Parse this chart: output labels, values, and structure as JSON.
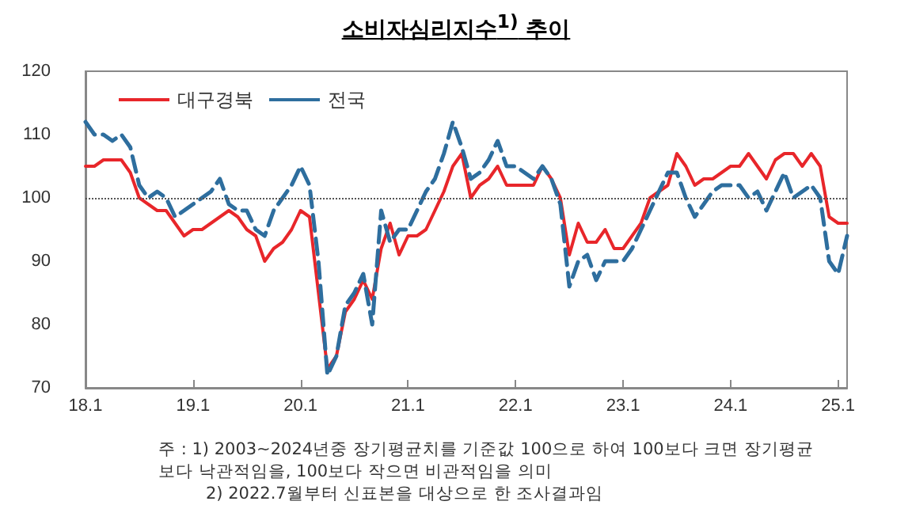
{
  "chart_data": {
    "type": "line",
    "title": "소비자심리지수$^{1)}$ 추이",
    "categories": [
      "18.1",
      null,
      null,
      null,
      null,
      null,
      null,
      null,
      null,
      null,
      null,
      null,
      "19.1",
      null,
      null,
      null,
      null,
      null,
      null,
      null,
      null,
      null,
      null,
      null,
      "20.1",
      null,
      null,
      null,
      null,
      null,
      null,
      null,
      null,
      null,
      null,
      null,
      "21.1",
      null,
      null,
      null,
      null,
      null,
      null,
      null,
      null,
      null,
      null,
      null,
      "22.1",
      null,
      null,
      null,
      null,
      null,
      null,
      null,
      null,
      null,
      null,
      null,
      "23.1",
      null,
      null,
      null,
      null,
      null,
      null,
      null,
      null,
      null,
      null,
      null,
      "24.1",
      null,
      null,
      null,
      null,
      null,
      null,
      null,
      null,
      null,
      null,
      null,
      "25.1",
      null
    ],
    "series": [
      {
        "name": "대구경북",
        "color": "#e8262a",
        "line_style": "solid",
        "values": [
          105,
          105,
          106,
          106,
          106,
          104,
          100,
          99,
          98,
          98,
          96,
          94,
          95,
          95,
          96,
          97,
          98,
          97,
          95,
          94,
          90,
          92,
          93,
          95,
          98,
          97,
          85,
          73,
          75,
          82,
          84,
          87,
          84,
          92,
          96,
          91,
          94,
          94,
          95,
          98,
          101,
          105,
          107,
          100,
          102,
          103,
          105,
          102,
          102,
          102,
          102,
          105,
          103,
          100,
          91,
          96,
          93,
          93,
          95,
          92,
          92,
          94,
          96,
          100,
          101,
          102,
          107,
          105,
          102,
          103,
          103,
          104,
          105,
          105,
          107,
          105,
          103,
          106,
          107,
          107,
          105,
          107,
          105,
          97,
          96,
          96
        ]
      },
      {
        "name": "전국",
        "color": "#2e6e9e",
        "line_style": "dashed",
        "values": [
          112,
          110,
          110,
          109,
          110,
          108,
          102,
          100,
          101,
          100,
          97,
          98,
          99,
          100,
          101,
          103,
          99,
          98,
          98,
          95,
          94,
          98,
          100,
          102,
          105,
          102,
          90,
          72,
          75,
          83,
          85,
          88,
          80,
          98,
          93,
          95,
          95,
          98,
          101,
          103,
          107,
          112,
          108,
          103,
          104,
          106,
          109,
          105,
          105,
          104,
          103,
          105,
          103,
          99,
          86,
          90,
          91,
          87,
          90,
          90,
          90,
          92,
          95,
          98,
          101,
          104,
          104,
          100,
          97,
          99,
          101,
          102,
          102,
          102,
          100,
          101,
          98,
          101,
          104,
          100,
          101,
          102,
          100,
          90,
          88,
          94
        ]
      }
    ],
    "ylim": [
      70,
      120
    ],
    "yticks": [
      70,
      80,
      90,
      100,
      110,
      120
    ],
    "grid": false,
    "legend": "top left",
    "marker": "none",
    "ref_lines": [
      {
        "axis": "y",
        "value": 100,
        "color": "#555555",
        "line_style": "dotted"
      }
    ],
    "annotations": [
      "주 : 1) 2003~2024년중 장기평균치를 기준값 100으로 하여 100보다 크면 장기평균보다 낙관적임을, 100보다 작으면 비관적임을 의미",
      "2) 2022.7월부터 신표본을 대상으로 한 조사결과임"
    ]
  }
}
